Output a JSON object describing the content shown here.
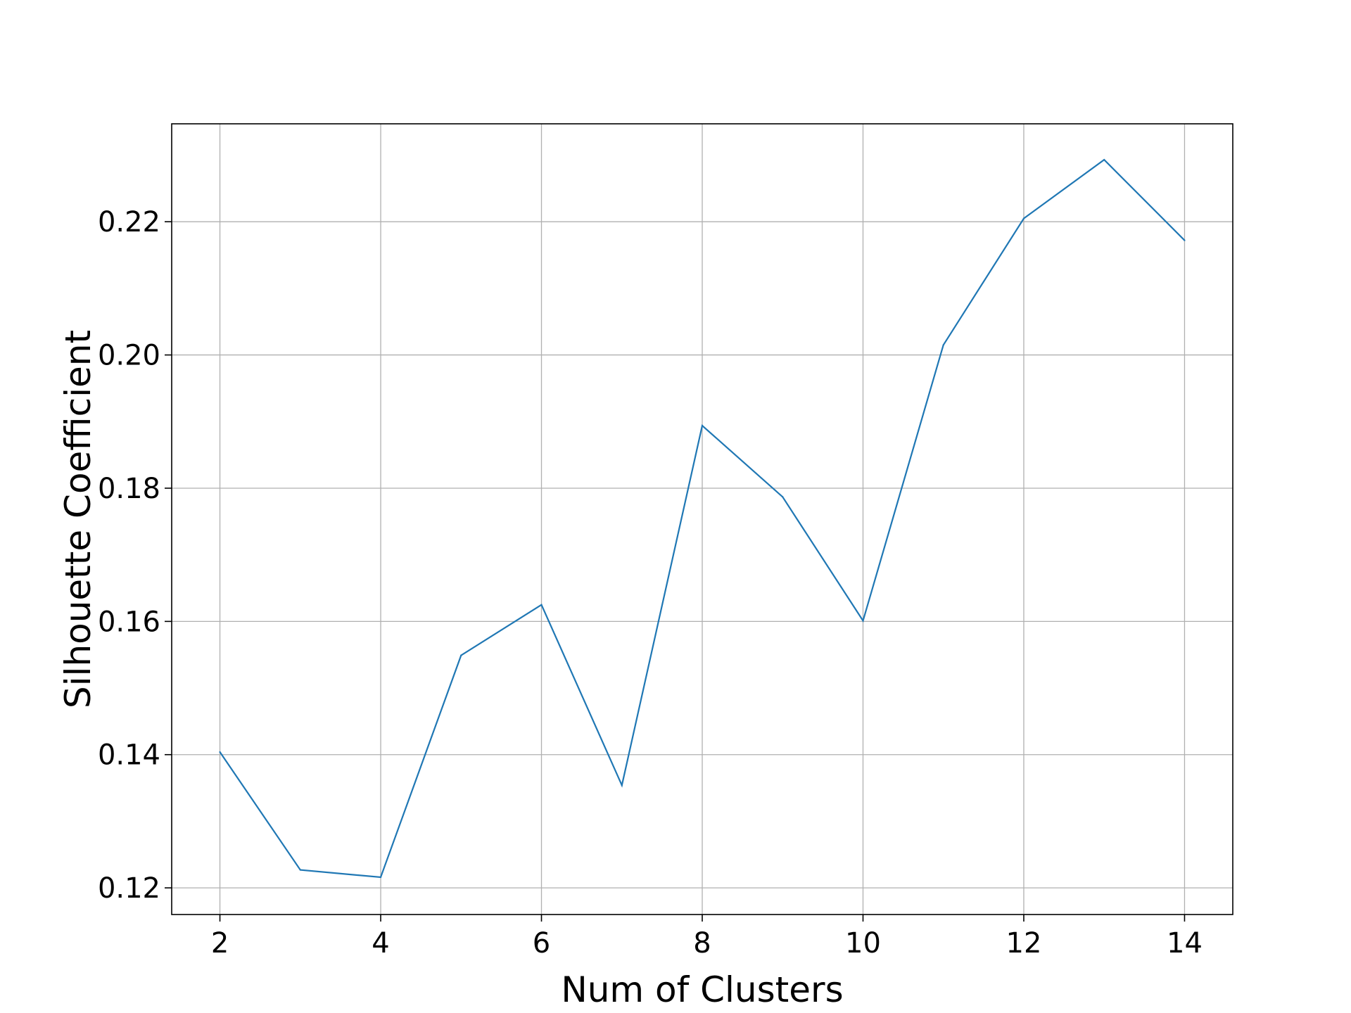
{
  "chart_data": {
    "type": "line",
    "title": "",
    "xlabel": "Num of Clusters",
    "ylabel": "Silhouette Coefficient",
    "x": [
      2,
      3,
      4,
      5,
      6,
      7,
      8,
      9,
      10,
      11,
      12,
      13,
      14
    ],
    "series": [
      {
        "values": [
          0.1404,
          0.1227,
          0.1216,
          0.1549,
          0.1625,
          0.1354,
          0.1894,
          0.1787,
          0.1601,
          0.2015,
          0.2205,
          0.2293,
          0.2172
        ],
        "color": "#1f77b4"
      }
    ],
    "xlim": [
      1.4,
      14.6
    ],
    "ylim": [
      0.116,
      0.2347
    ],
    "xticks": [
      2,
      4,
      6,
      8,
      10,
      12,
      14
    ],
    "xtick_labels": [
      "2",
      "4",
      "6",
      "8",
      "10",
      "12",
      "14"
    ],
    "yticks": [
      0.12,
      0.14,
      0.16,
      0.18,
      0.2,
      0.22
    ],
    "ytick_labels": [
      "0.12",
      "0.14",
      "0.16",
      "0.18",
      "0.20",
      "0.22"
    ],
    "grid": true,
    "grid_color": "#b0b0b0",
    "legend": false
  }
}
